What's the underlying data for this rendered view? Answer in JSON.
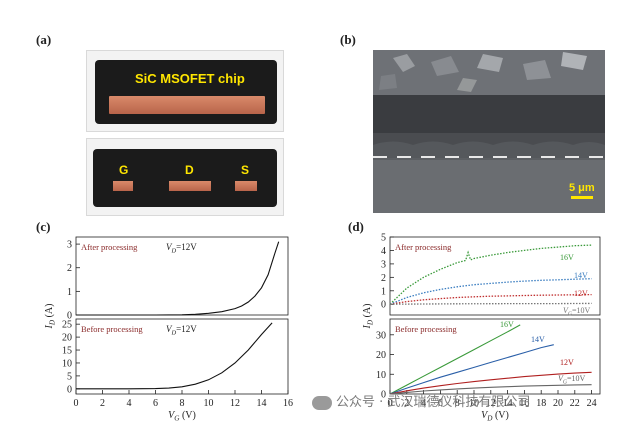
{
  "panels": {
    "a": {
      "label": "(a)",
      "chip_title": "SiC MSOFET chip",
      "pins": [
        "G",
        "D",
        "S"
      ]
    },
    "b": {
      "label": "(b)",
      "scale_bar": "5 μm"
    },
    "c": {
      "label": "(c)"
    },
    "d": {
      "label": "(d)"
    }
  },
  "chart_data": [
    {
      "id": "c-top",
      "type": "line",
      "annotation": "After processing",
      "condition_text": "V",
      "condition_sub": "D",
      "condition_value": "=12V",
      "ylabel": "I",
      "ylabel_sub": "D",
      "ylabel_unit": " (A)",
      "xlim": [
        0,
        16
      ],
      "ylim": [
        0,
        3.3
      ],
      "yticks": [
        0,
        1,
        2,
        3
      ],
      "series": [
        {
          "name": "transfer",
          "color": "#111111",
          "x": [
            0,
            2,
            4,
            6,
            8,
            9,
            10,
            11,
            12,
            12.5,
            13,
            13.5,
            14,
            14.5,
            15,
            15.3
          ],
          "y": [
            0,
            0,
            0,
            0,
            0.01,
            0.03,
            0.07,
            0.14,
            0.27,
            0.38,
            0.55,
            0.8,
            1.15,
            1.7,
            2.6,
            3.1
          ]
        }
      ]
    },
    {
      "id": "c-bottom",
      "type": "line",
      "annotation": "Before processing",
      "condition_text": "V",
      "condition_sub": "D",
      "condition_value": "=12V",
      "xlabel": "V",
      "xlabel_sub": "G",
      "xlabel_unit": " (V)",
      "xlim": [
        0,
        16
      ],
      "ylim": [
        -2,
        27
      ],
      "xticks": [
        0,
        2,
        4,
        6,
        8,
        10,
        12,
        14,
        16
      ],
      "yticks": [
        0,
        5,
        10,
        15,
        20,
        25
      ],
      "series": [
        {
          "name": "transfer",
          "color": "#111111",
          "x": [
            0,
            2,
            4,
            6,
            7,
            8,
            9,
            10,
            11,
            12,
            13,
            14,
            14.8
          ],
          "y": [
            0,
            0,
            0,
            0.1,
            0.3,
            0.8,
            1.8,
            3.5,
            6.2,
            10,
            15,
            21,
            25.5
          ]
        }
      ]
    },
    {
      "id": "d-top",
      "type": "line",
      "annotation": "After processing",
      "xlim": [
        0,
        25
      ],
      "ylim": [
        -0.8,
        5
      ],
      "yticks": [
        0,
        1,
        2,
        3,
        4,
        5
      ],
      "series": [
        {
          "name": "16V",
          "color": "#3a9a3a",
          "x": [
            0,
            2,
            4,
            6,
            8,
            9,
            9.3,
            9.6,
            10,
            12,
            14,
            16,
            18,
            20,
            22,
            24
          ],
          "y": [
            0,
            1.2,
            2.0,
            2.6,
            3.1,
            3.25,
            3.85,
            3.3,
            3.4,
            3.65,
            3.85,
            4.0,
            4.15,
            4.25,
            4.35,
            4.4
          ]
        },
        {
          "name": "14V",
          "color": "#3a7dc0",
          "x": [
            0,
            2,
            4,
            6,
            8,
            10,
            12,
            14,
            16,
            18,
            20,
            22,
            24
          ],
          "y": [
            0,
            0.5,
            0.85,
            1.1,
            1.3,
            1.45,
            1.55,
            1.65,
            1.72,
            1.78,
            1.82,
            1.86,
            1.9
          ]
        },
        {
          "name": "12V",
          "color": "#c03030",
          "x": [
            0,
            2,
            4,
            6,
            8,
            10,
            12,
            14,
            16,
            18,
            20,
            22,
            24
          ],
          "y": [
            0,
            0.2,
            0.33,
            0.42,
            0.5,
            0.55,
            0.6,
            0.62,
            0.65,
            0.67,
            0.69,
            0.7,
            0.72
          ]
        },
        {
          "name": "10V",
          "color": "#777777",
          "x": [
            0,
            4,
            8,
            12,
            16,
            20,
            24
          ],
          "y": [
            0,
            0.02,
            0.03,
            0.04,
            0.05,
            0.05,
            0.06
          ]
        }
      ],
      "curve_labels": [
        "16V",
        "14V",
        "12V",
        "=10V"
      ],
      "curve_label_prefix": "V",
      "curve_label_sub": "G"
    },
    {
      "id": "d-bottom",
      "type": "line",
      "annotation": "Before processing",
      "xlabel": "V",
      "xlabel_sub": "D",
      "xlabel_unit": " (V)",
      "ylabel": "I",
      "ylabel_sub": "D",
      "ylabel_unit": " (A)",
      "xlim": [
        0,
        25
      ],
      "ylim": [
        0,
        38
      ],
      "xticks": [
        0,
        2,
        4,
        6,
        8,
        10,
        12,
        14,
        16,
        18,
        20,
        22,
        24
      ],
      "yticks": [
        0,
        10,
        20,
        30
      ],
      "series": [
        {
          "name": "16V",
          "color": "#3a9a3a",
          "x": [
            0,
            2,
            4,
            6,
            8,
            10,
            12,
            14,
            15.5
          ],
          "y": [
            0,
            4.5,
            9,
            13.5,
            18,
            22.5,
            27,
            31.5,
            35
          ]
        },
        {
          "name": "14V",
          "color": "#2a5fa8",
          "x": [
            0,
            2,
            4,
            6,
            8,
            10,
            12,
            14,
            16,
            18,
            19.5
          ],
          "y": [
            0,
            3,
            5.8,
            8.5,
            11,
            13.5,
            16,
            18.5,
            21,
            23.5,
            25
          ]
        },
        {
          "name": "12V",
          "color": "#b02020",
          "x": [
            0,
            2,
            4,
            6,
            8,
            10,
            12,
            14,
            16,
            18,
            20,
            22,
            24
          ],
          "y": [
            0,
            1.6,
            3,
            4.2,
            5.3,
            6.3,
            7.2,
            8,
            8.8,
            9.5,
            10.1,
            10.6,
            11
          ]
        },
        {
          "name": "10V",
          "color": "#666666",
          "x": [
            0,
            2,
            4,
            6,
            8,
            10,
            12,
            14,
            16,
            18,
            20,
            22,
            24
          ],
          "y": [
            0,
            0.8,
            1.5,
            2.1,
            2.6,
            3,
            3.4,
            3.7,
            4,
            4.2,
            4.4,
            4.6,
            4.7
          ]
        }
      ],
      "curve_labels": [
        "16V",
        "14V",
        "12V",
        "=10V"
      ],
      "curve_label_prefix": "V",
      "curve_label_sub": "G"
    }
  ],
  "watermark": "公众号 · 武汉瑞德仪科技有限公司"
}
